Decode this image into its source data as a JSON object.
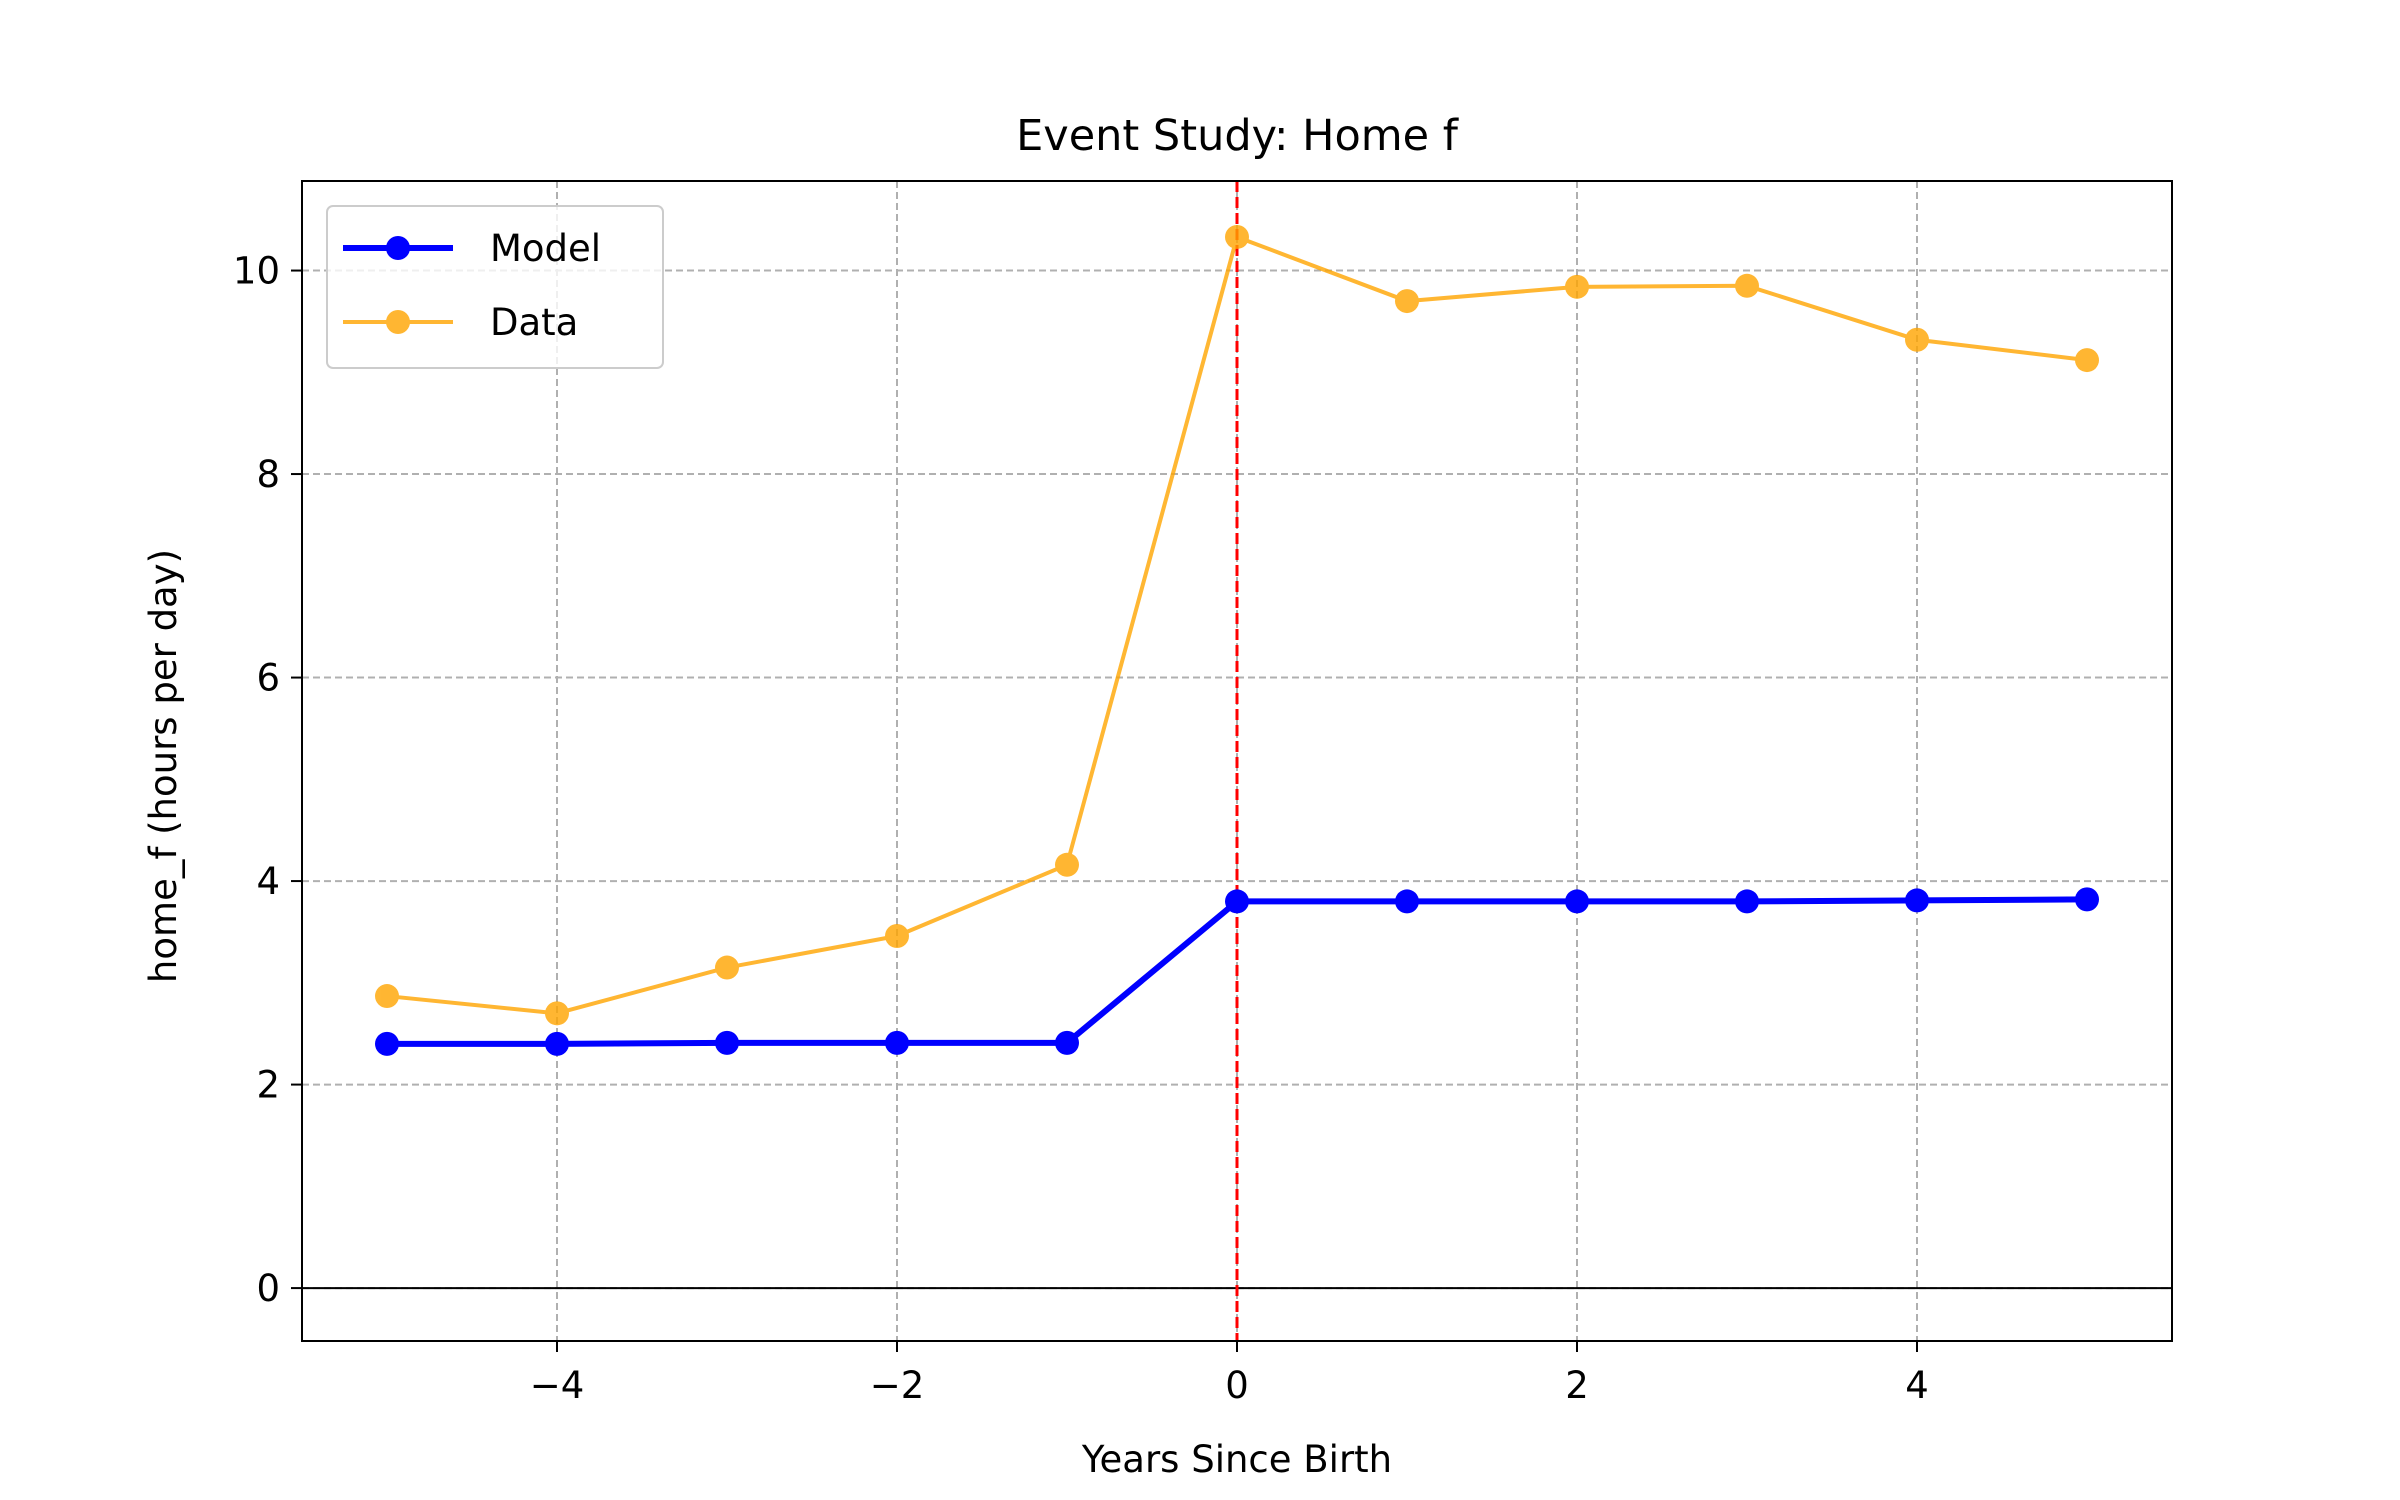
{
  "chart_data": {
    "type": "line",
    "title": "Event Study: Home f",
    "xlabel": "Years Since Birth",
    "ylabel": "home_f (hours per day)",
    "xlim": [
      -5.5,
      5.5
    ],
    "ylim": [
      -0.52,
      10.88
    ],
    "xticks": [
      -4,
      -2,
      0,
      2,
      4
    ],
    "xtick_labels": [
      "−4",
      "−2",
      "0",
      "2",
      "4"
    ],
    "yticks": [
      0,
      2,
      4,
      6,
      8,
      10
    ],
    "ytick_labels": [
      "0",
      "2",
      "4",
      "6",
      "8",
      "10"
    ],
    "grid": true,
    "legend_position": "upper-left",
    "reference_lines": {
      "horizontal_zero": {
        "y": 0,
        "color": "#000000"
      },
      "vertical_event": {
        "x": 0,
        "color": "#ff0000",
        "style": "dashed"
      }
    },
    "x": [
      -5,
      -4,
      -3,
      -2,
      -1,
      0,
      1,
      2,
      3,
      4,
      5
    ],
    "series": [
      {
        "name": "Model",
        "color": "#0000ff",
        "values": [
          2.4,
          2.4,
          2.41,
          2.41,
          2.41,
          3.8,
          3.8,
          3.8,
          3.8,
          3.81,
          3.82
        ]
      },
      {
        "name": "Data",
        "color": "#ffa500",
        "values": [
          2.87,
          2.7,
          3.15,
          3.46,
          4.16,
          10.33,
          9.7,
          9.84,
          9.85,
          9.32,
          9.12
        ]
      }
    ]
  }
}
